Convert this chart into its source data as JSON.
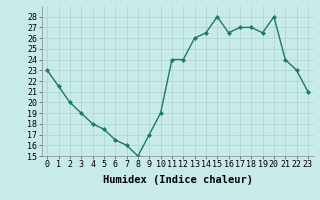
{
  "x": [
    0,
    1,
    2,
    3,
    4,
    5,
    6,
    7,
    8,
    9,
    10,
    11,
    12,
    13,
    14,
    15,
    16,
    17,
    18,
    19,
    20,
    21,
    22,
    23
  ],
  "y": [
    23,
    21.5,
    20,
    19,
    18,
    17.5,
    16.5,
    16,
    15,
    17,
    19,
    24,
    24,
    26,
    26.5,
    28,
    26.5,
    27,
    27,
    26.5,
    28,
    24,
    23,
    21
  ],
  "line_color": "#1a7a6e",
  "marker": "D",
  "marker_size": 2.0,
  "bg_color": "#c8eae8",
  "grid_color": "#b0d8d4",
  "xlabel": "Humidex (Indice chaleur)",
  "xlabel_fontsize": 7.5,
  "ylim": [
    15,
    29
  ],
  "xlim": [
    -0.5,
    23.5
  ],
  "yticks": [
    15,
    16,
    17,
    18,
    19,
    20,
    21,
    22,
    23,
    24,
    25,
    26,
    27,
    28
  ],
  "xticks": [
    0,
    1,
    2,
    3,
    4,
    5,
    6,
    7,
    8,
    9,
    10,
    11,
    12,
    13,
    14,
    15,
    16,
    17,
    18,
    19,
    20,
    21,
    22,
    23
  ],
  "tick_fontsize": 6.0,
  "line_width": 1.0
}
